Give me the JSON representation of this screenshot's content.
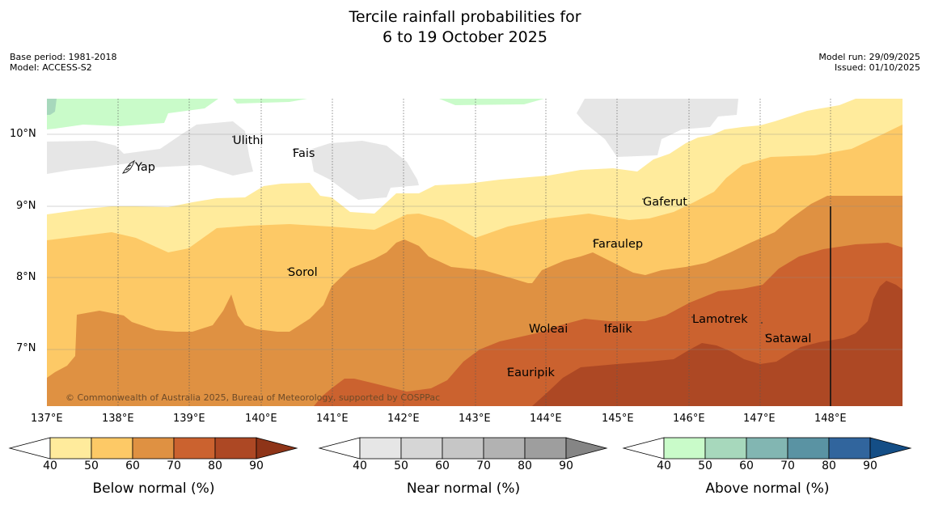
{
  "header": {
    "title_line1": "Tercile rainfall probabilities for",
    "title_line2": "6 to 19 October 2025",
    "base_period": "Base period: 1981-2018",
    "model": "Model: ACCESS-S2",
    "model_run": "Model run: 29/09/2025",
    "issued": "Issued: 01/10/2025"
  },
  "map": {
    "lat_labels": [
      "10°N",
      "9°N",
      "8°N",
      "7°N"
    ],
    "lon_labels": [
      "137°E",
      "138°E",
      "139°E",
      "140°E",
      "141°E",
      "142°E",
      "143°E",
      "144°E",
      "145°E",
      "146°E",
      "147°E",
      "148°E"
    ],
    "places": [
      "Ulithi",
      "Fais",
      "Yap",
      "Gaferut",
      "Faraulep",
      "Sorol",
      "Woleai",
      "Ifalik",
      "Lamotrek",
      "Satawal",
      "Eauripik"
    ],
    "copyright": "© Commonwealth of Australia 2025, Bureau of Meteorology, supported by COSPPac"
  },
  "colorbars": [
    {
      "label": "Below normal (%)",
      "ticks": [
        "40",
        "50",
        "60",
        "70",
        "80",
        "90"
      ],
      "colors": [
        "#ffeb9c",
        "#fdc966",
        "#df9142",
        "#cb622f",
        "#ad4824",
        "#8e3418"
      ]
    },
    {
      "label": "Near normal (%)",
      "ticks": [
        "40",
        "50",
        "60",
        "70",
        "80",
        "90"
      ],
      "colors": [
        "#e6e6e6",
        "#d6d6d6",
        "#c6c6c6",
        "#b2b2b2",
        "#9e9e9e",
        "#858585"
      ]
    },
    {
      "label": "Above normal (%)",
      "ticks": [
        "40",
        "50",
        "60",
        "70",
        "80",
        "90"
      ],
      "colors": [
        "#c9fbc9",
        "#a7d8bc",
        "#82b6b2",
        "#5a93a3",
        "#31659d",
        "#144e86"
      ]
    }
  ]
}
